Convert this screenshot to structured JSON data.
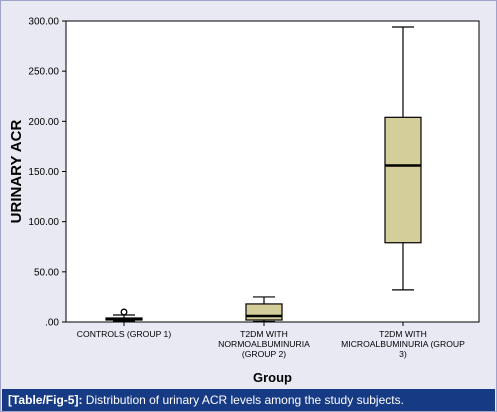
{
  "caption": {
    "label": "[Table/Fig-5]:",
    "text": " Distribution of urinary ACR levels among the study subjects."
  },
  "colors": {
    "plot_background": "#ffffff",
    "figure_background": "#e9e9f4",
    "box_fill": "#d4cf9a",
    "caption_background": "#173a85"
  },
  "chart_data": {
    "type": "boxplot",
    "title": "",
    "xlabel": "Group",
    "ylabel": "URINARY ACR",
    "ylim": [
      0,
      300
    ],
    "yticks": [
      {
        "value": 0,
        "label": ".00"
      },
      {
        "value": 50,
        "label": "50.00"
      },
      {
        "value": 100,
        "label": "100.00"
      },
      {
        "value": 150,
        "label": "150.00"
      },
      {
        "value": 200,
        "label": "200.00"
      },
      {
        "value": 250,
        "label": "250.00"
      },
      {
        "value": 300,
        "label": "300.00"
      }
    ],
    "grid": false,
    "legend": "none",
    "groups": [
      {
        "label": [
          "CONTROLS (GROUP 1)"
        ],
        "min": 1,
        "q1": 2,
        "median": 3,
        "q3": 4,
        "max": 7,
        "outliers": [
          10
        ]
      },
      {
        "label": [
          "T2DM WITH",
          "NORMOALBUMINURIA",
          "(GROUP 2)"
        ],
        "min": 0.5,
        "q1": 2,
        "median": 6,
        "q3": 18,
        "max": 25,
        "outliers": []
      },
      {
        "label": [
          "T2DM WITH",
          "MICROALBUMINURIA (GROUP",
          "3)"
        ],
        "min": 32,
        "q1": 79,
        "median": 156,
        "q3": 204,
        "max": 294,
        "outliers": []
      }
    ]
  }
}
